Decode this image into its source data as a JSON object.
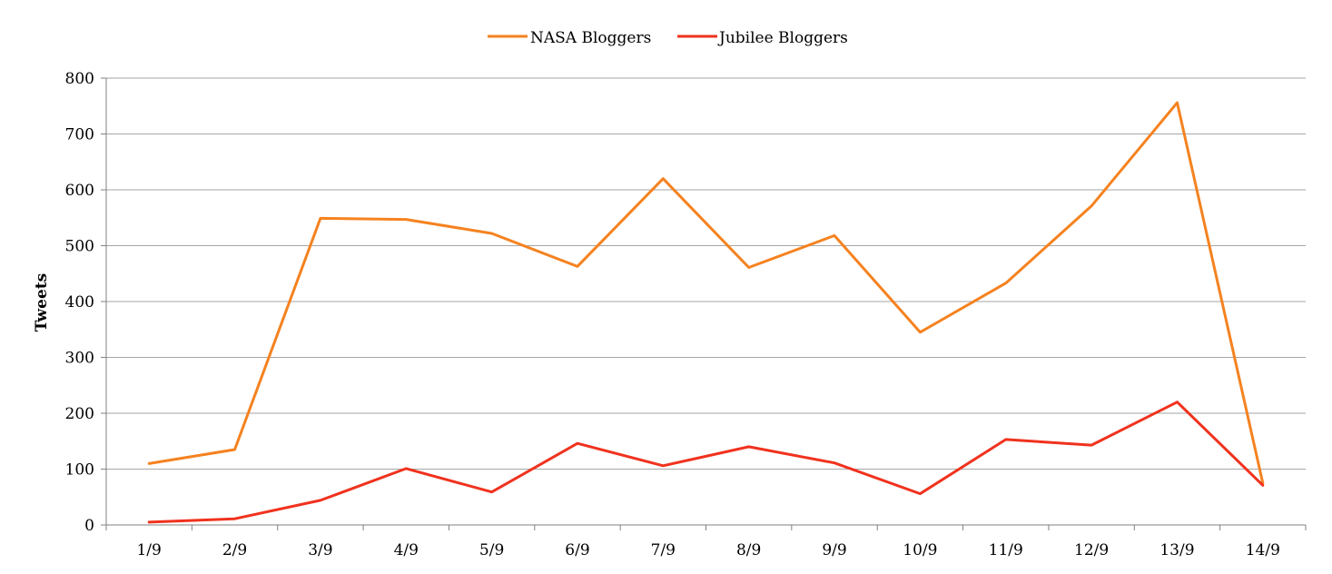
{
  "chart_data": {
    "type": "line",
    "title": "",
    "xlabel": "",
    "ylabel": "Tweets",
    "categories": [
      "1/9",
      "2/9",
      "3/9",
      "4/9",
      "5/9",
      "6/9",
      "7/9",
      "8/9",
      "9/9",
      "10/9",
      "11/9",
      "12/9",
      "13/9",
      "14/9"
    ],
    "ylim": [
      0,
      800
    ],
    "yticks": [
      0,
      100,
      200,
      300,
      400,
      500,
      600,
      700,
      800
    ],
    "grid": true,
    "legend_position": "top",
    "series": [
      {
        "name": "NASA Bloggers",
        "color": "#f5821f",
        "values": [
          110,
          135,
          549,
          547,
          522,
          463,
          620,
          461,
          518,
          345,
          433,
          571,
          756,
          75
        ]
      },
      {
        "name": "Jubilee Bloggers",
        "color": "#f0321e",
        "values": [
          5,
          11,
          44,
          101,
          59,
          146,
          106,
          140,
          111,
          56,
          153,
          143,
          220,
          71
        ]
      }
    ]
  }
}
